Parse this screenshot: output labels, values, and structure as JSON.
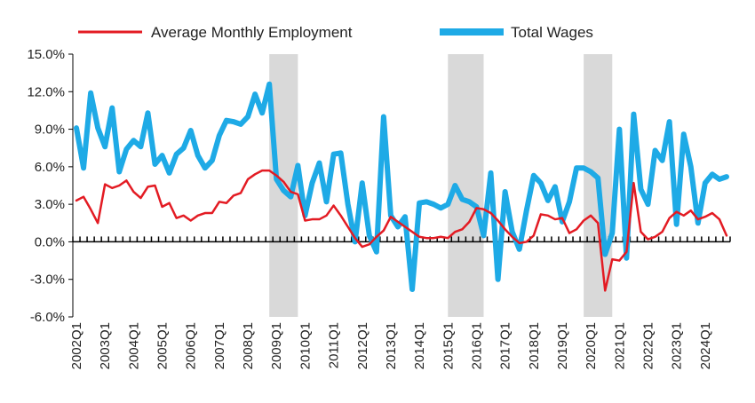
{
  "chart_data": {
    "type": "line",
    "title": "",
    "xlabel": "",
    "ylabel": "",
    "ylim": [
      -6,
      15
    ],
    "y_ticks": [
      15,
      12,
      9,
      6,
      3,
      0,
      -3,
      -6
    ],
    "y_tick_labels": [
      "15.0%",
      "12.0%",
      "9.0%",
      "6.0%",
      "3.0%",
      "0.0%",
      "-3.0%",
      "-6.0%"
    ],
    "x_tick_labels": [
      "2002Q1",
      "2003Q1",
      "2004Q1",
      "2005Q1",
      "2006Q1",
      "2007Q1",
      "2008Q1",
      "2009Q1",
      "2010Q1",
      "2011Q1",
      "2012Q1",
      "2013Q1",
      "2014Q1",
      "2015Q1",
      "2016Q1",
      "2017Q1",
      "2018Q1",
      "2019Q1",
      "2020Q1",
      "2021Q1",
      "2022Q1",
      "2023Q1",
      "2024Q1"
    ],
    "x_start": "2002Q1",
    "x_end": "2024Q4",
    "legend_position": "top",
    "recession_shading": [
      {
        "start": "2008Q4",
        "end": "2009Q4"
      },
      {
        "start": "2015Q1",
        "end": "2016Q2"
      },
      {
        "start": "2019Q4",
        "end": "2020Q4"
      }
    ],
    "shade_color": "#d9d9d9",
    "series": [
      {
        "name": "Average Monthly Employment",
        "color": "#e31b23",
        "values": [
          3.3,
          3.6,
          2.6,
          1.5,
          4.6,
          4.3,
          4.5,
          4.9,
          4.0,
          3.5,
          4.4,
          4.5,
          2.8,
          3.1,
          1.9,
          2.1,
          1.7,
          2.1,
          2.3,
          2.3,
          3.2,
          3.1,
          3.7,
          3.9,
          5.0,
          5.4,
          5.7,
          5.7,
          5.3,
          4.8,
          4.0,
          3.8,
          1.7,
          1.8,
          1.8,
          2.1,
          2.9,
          2.1,
          1.2,
          0.3,
          -0.4,
          -0.2,
          0.4,
          0.9,
          2.0,
          1.6,
          1.2,
          0.8,
          0.4,
          0.3,
          0.3,
          0.4,
          0.3,
          0.8,
          1.0,
          1.6,
          2.7,
          2.6,
          2.3,
          1.7,
          1.0,
          0.4,
          -0.1,
          0.0,
          0.5,
          2.2,
          2.1,
          1.8,
          1.9,
          0.7,
          1.0,
          1.7,
          2.1,
          1.5,
          -3.9,
          -1.4,
          -1.5,
          -0.8,
          4.7,
          0.8,
          0.2,
          0.4,
          0.8,
          1.9,
          2.4,
          2.1,
          2.5,
          1.8,
          2.0,
          2.3,
          1.8,
          0.5
        ]
      },
      {
        "name": "Total Wages",
        "color": "#1eaae6",
        "values": [
          9.1,
          5.9,
          11.9,
          9.1,
          7.6,
          10.7,
          5.6,
          7.4,
          8.1,
          7.6,
          10.3,
          6.2,
          6.9,
          5.5,
          7.0,
          7.5,
          8.9,
          6.9,
          5.9,
          6.5,
          8.5,
          9.7,
          9.6,
          9.4,
          10.0,
          11.8,
          10.3,
          12.6,
          5.0,
          4.1,
          3.6,
          6.1,
          2.1,
          4.7,
          6.3,
          3.2,
          7.0,
          7.1,
          3.0,
          0.0,
          4.7,
          0.5,
          -0.8,
          10.0,
          2.1,
          1.2,
          2.0,
          -3.8,
          3.1,
          3.2,
          3.0,
          2.7,
          3.0,
          4.5,
          3.4,
          3.2,
          2.8,
          0.5,
          5.5,
          -3.0,
          4.0,
          0.8,
          -0.6,
          2.5,
          5.3,
          4.7,
          3.3,
          4.4,
          1.6,
          3.2,
          5.9,
          5.9,
          5.6,
          5.1,
          -1.0,
          0.7,
          9.0,
          -1.3,
          10.2,
          4.2,
          3.0,
          7.3,
          6.5,
          9.6,
          1.4,
          8.6,
          6.0,
          1.5,
          4.7,
          5.4,
          5.0,
          5.2
        ]
      }
    ]
  }
}
